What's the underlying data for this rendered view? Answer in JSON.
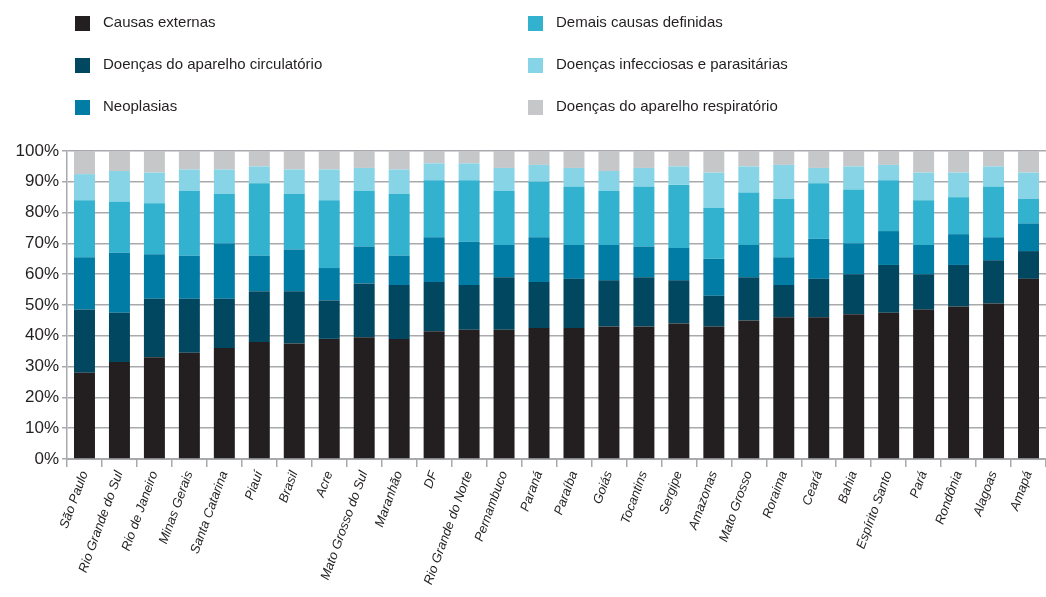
{
  "chart_data": {
    "type": "bar",
    "stacked": true,
    "legend": "top",
    "grid": "y",
    "categories": [
      "São Paulo",
      "Rio Grande do Sul",
      "Rio de Janeiro",
      "Minas Gerais",
      "Santa Catarina",
      "Piauí",
      "Brasil",
      "Acre",
      "Mato Grosso do Sul",
      "Maranhão",
      "DF",
      "Rio Grande do Norte",
      "Pernambuco",
      "Paraná",
      "Paraíba",
      "Goiás",
      "Tocantins",
      "Sergipe",
      "Amazonas",
      "Mato Grosso",
      "Roraima",
      "Ceará",
      "Bahia",
      "Espírito Santo",
      "Pará",
      "Rondônia",
      "Alagoas",
      "Amapá"
    ],
    "series": [
      {
        "name": "Causas externas",
        "color": "#231f20",
        "values": [
          28,
          31.5,
          33,
          34.5,
          36,
          38,
          37.5,
          39,
          39.5,
          39,
          41.5,
          42,
          42,
          42.5,
          42.5,
          43,
          43,
          44,
          43,
          45,
          46,
          46,
          47,
          47.5,
          48.5,
          49.5,
          50.5,
          58.5
        ]
      },
      {
        "name": "Doenças do aparelho circulatório",
        "color": "#00475f",
        "values": [
          20.5,
          16,
          19,
          17.5,
          16,
          16.5,
          17,
          12.5,
          17.5,
          17.5,
          16,
          14.5,
          17,
          15,
          16,
          15,
          16,
          14,
          10,
          14,
          10.5,
          12.5,
          13,
          15.5,
          11.5,
          13.5,
          14,
          9
        ]
      },
      {
        "name": "Neoplasias",
        "color": "#007ca5",
        "values": [
          17,
          19.5,
          14.5,
          14,
          18,
          11.5,
          13.5,
          10.5,
          12,
          9.5,
          14.5,
          14,
          10.5,
          14.5,
          11,
          11.5,
          10,
          10.5,
          12,
          10.5,
          9,
          13,
          10,
          11,
          9.5,
          10,
          7.5,
          9
        ]
      },
      {
        "name": "Demais causas definidas",
        "color": "#33b2cf",
        "values": [
          18.5,
          16.5,
          16.5,
          21,
          16,
          23.5,
          18,
          22,
          18,
          20,
          18.5,
          20,
          17.5,
          18,
          19,
          17.5,
          19.5,
          20.5,
          16.5,
          17,
          19,
          18,
          17.5,
          16.5,
          14.5,
          12,
          16.5,
          8
        ]
      },
      {
        "name": "Doenças infecciosas e parasitárias",
        "color": "#88d4e7",
        "values": [
          8.5,
          10,
          10,
          7,
          8,
          5.5,
          8,
          10,
          7.5,
          8,
          5.5,
          5.5,
          7.5,
          5.5,
          6,
          6.5,
          6,
          6,
          11.5,
          8.5,
          11,
          5,
          7.5,
          5,
          9,
          8,
          6.5,
          8.5
        ]
      },
      {
        "name": "Doenças do aparelho respiratório",
        "color": "#c6c7c9",
        "values": [
          7.5,
          6.5,
          7,
          6,
          6,
          5,
          6,
          6,
          5.5,
          6,
          4,
          4,
          5.5,
          4.5,
          5.5,
          6.5,
          5.5,
          5,
          7,
          5,
          4.5,
          5.5,
          5,
          4.5,
          7,
          7,
          5,
          7
        ]
      }
    ],
    "ylim": [
      0,
      100
    ],
    "yticks": [
      {
        "value": 0,
        "label": "0%"
      },
      {
        "value": 10,
        "label": "10%"
      },
      {
        "value": 20,
        "label": "20%"
      },
      {
        "value": 30,
        "label": "30%"
      },
      {
        "value": 40,
        "label": "40%"
      },
      {
        "value": 50,
        "label": "50%"
      },
      {
        "value": 60,
        "label": "60%"
      },
      {
        "value": 70,
        "label": "70%"
      },
      {
        "value": 80,
        "label": "80%"
      },
      {
        "value": 90,
        "label": "90%"
      },
      {
        "value": 100,
        "label": "100%"
      }
    ]
  }
}
